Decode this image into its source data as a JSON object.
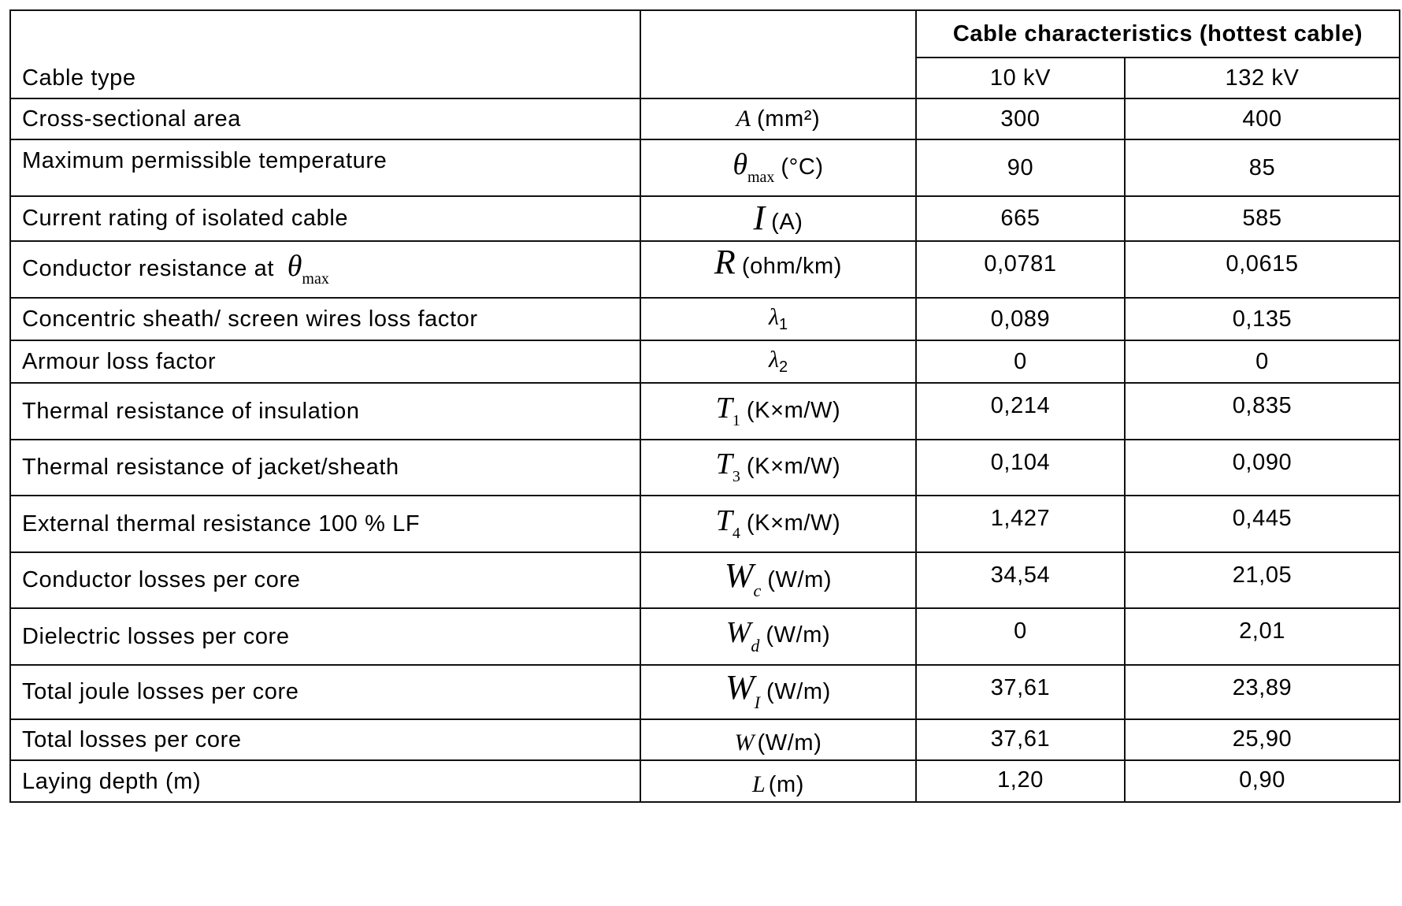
{
  "header": {
    "group_title": "Cable characteristics (hottest cable)",
    "row_label": "Cable type",
    "col_10kv": "10 kV",
    "col_132kv": "132 kV"
  },
  "rows": [
    {
      "label": "Cross-sectional area",
      "symbol": "A",
      "sub": "",
      "unit": "(mm²)",
      "v10": "300",
      "v132": "400"
    },
    {
      "label": "Maximum permissible temperature",
      "symbol": "θ",
      "sub": "max",
      "unit": "(°C)",
      "v10": "90",
      "v132": "85"
    },
    {
      "label": "Current rating of isolated cable",
      "symbol": "I",
      "sub": "",
      "unit": "(A)",
      "v10": "665",
      "v132": "585"
    },
    {
      "label": "Conductor resistance at ",
      "label_symbol": "θ",
      "label_sub": "max",
      "symbol": "R",
      "sub": "",
      "unit": "(ohm/km)",
      "v10": "0,0781",
      "v132": "0,0615"
    },
    {
      "label": "Concentric sheath/ screen wires loss factor",
      "symbol": "λ",
      "sub": "1",
      "unit": "",
      "v10": "0,089",
      "v132": "0,135"
    },
    {
      "label": "Armour loss factor",
      "symbol": "λ",
      "sub": "2",
      "unit": "",
      "v10": "0",
      "v132": "0"
    },
    {
      "label": "Thermal resistance of insulation",
      "symbol": "T",
      "sub": "1",
      "unit": "(K×m/W)",
      "v10": "0,214",
      "v132": "0,835"
    },
    {
      "label": "Thermal resistance of jacket/sheath",
      "symbol": "T",
      "sub": "3",
      "unit": "(K×m/W)",
      "v10": "0,104",
      "v132": "0,090"
    },
    {
      "label": "External thermal resistance 100 % LF",
      "symbol": "T",
      "sub": "4",
      "unit": "(K×m/W)",
      "v10": "1,427",
      "v132": "0,445"
    },
    {
      "label": "Conductor losses per core",
      "symbol": "W",
      "sub": "c",
      "unit": "(W/m)",
      "v10": "34,54",
      "v132": "21,05"
    },
    {
      "label": "Dielectric losses per core",
      "symbol": "W",
      "sub": "d",
      "unit": "(W/m)",
      "v10": "0",
      "v132": "2,01"
    },
    {
      "label": "Total joule losses per core",
      "symbol": "W",
      "sub": "I",
      "unit": "(W/m)",
      "v10": "37,61",
      "v132": "23,89"
    },
    {
      "label": "Total losses per core",
      "symbol": "W",
      "sub": "",
      "unit": "(W/m)",
      "v10": "37,61",
      "v132": "25,90"
    },
    {
      "label": "Laying depth (m)",
      "symbol": "L",
      "sub": "",
      "unit": "(m)",
      "v10": "1,20",
      "v132": "0,90"
    }
  ]
}
